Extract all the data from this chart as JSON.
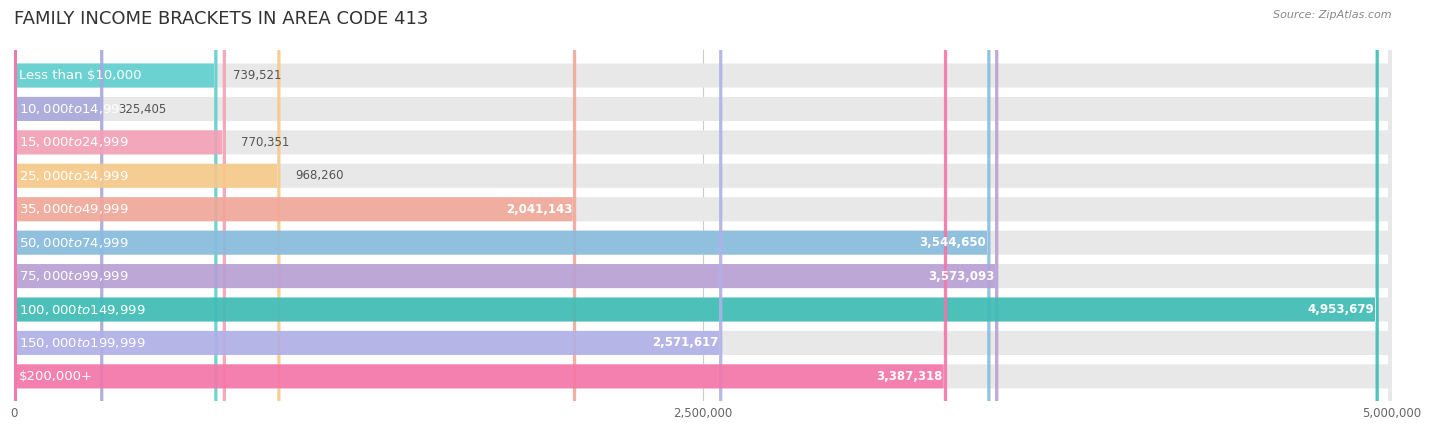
{
  "title": "FAMILY INCOME BRACKETS IN AREA CODE 413",
  "source": "Source: ZipAtlas.com",
  "categories": [
    "Less than $10,000",
    "$10,000 to $14,999",
    "$15,000 to $24,999",
    "$25,000 to $34,999",
    "$35,000 to $49,999",
    "$50,000 to $74,999",
    "$75,000 to $99,999",
    "$100,000 to $149,999",
    "$150,000 to $199,999",
    "$200,000+"
  ],
  "values": [
    739521,
    325405,
    770351,
    968260,
    2041143,
    3544650,
    3573093,
    4953679,
    2571617,
    3387318
  ],
  "bar_colors": [
    "#5ecfcf",
    "#a8a8dc",
    "#f5a0b5",
    "#f7ca8a",
    "#f0a898",
    "#88bcdf",
    "#b8a0d5",
    "#3dbcb5",
    "#b0b0e8",
    "#f575a8"
  ],
  "value_labels": [
    "739,521",
    "325,405",
    "770,351",
    "968,260",
    "2,041,143",
    "3,544,650",
    "3,573,093",
    "4,953,679",
    "2,571,617",
    "3,387,318"
  ],
  "xlim": [
    0,
    5000000
  ],
  "xtick_labels": [
    "0",
    "2,500,000",
    "5,000,000"
  ],
  "background_color": "#ffffff",
  "bar_bg_color": "#e8e8e8",
  "title_fontsize": 13,
  "label_fontsize": 9.5,
  "value_fontsize": 8.5,
  "source_fontsize": 8,
  "value_threshold": 1500000
}
